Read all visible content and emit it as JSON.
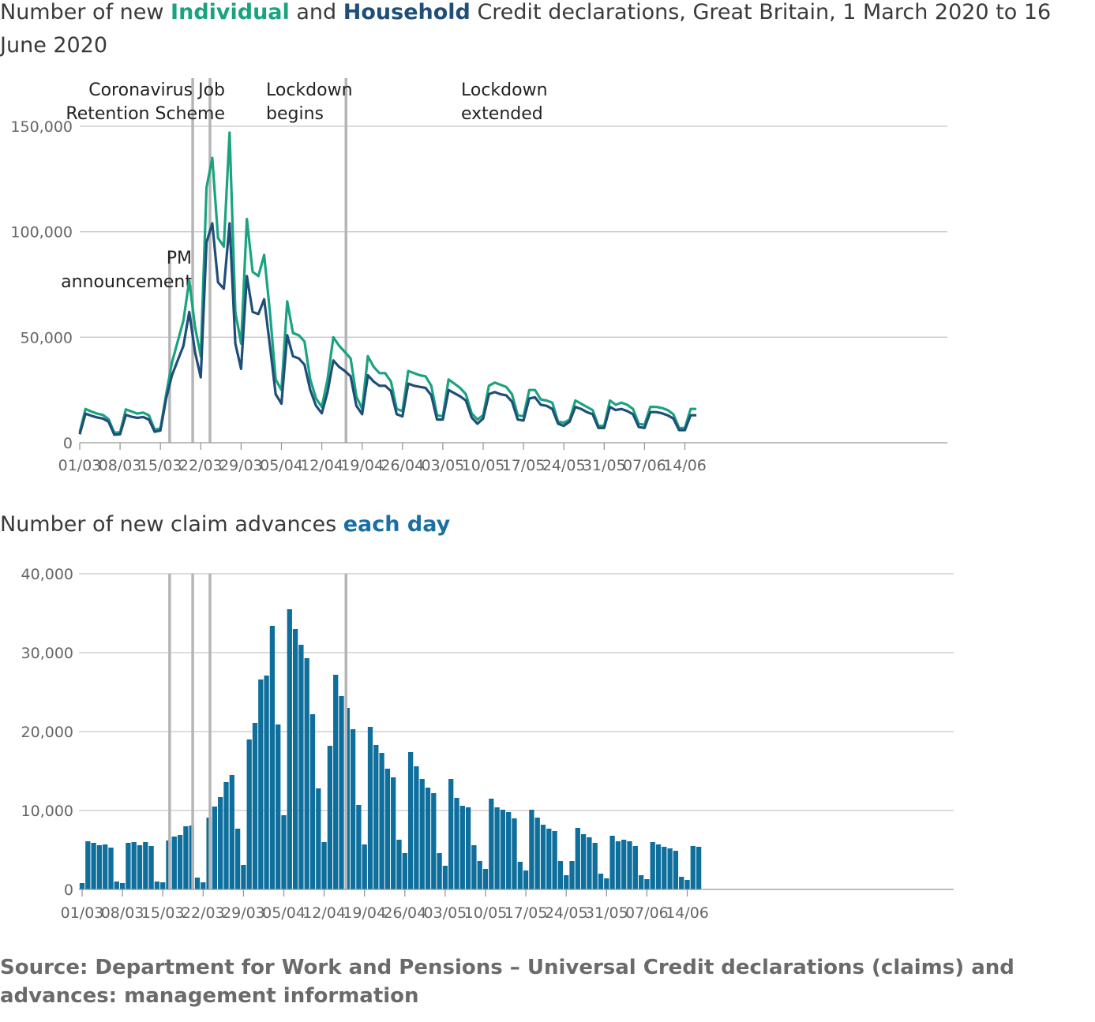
{
  "chart_data": [
    {
      "type": "line",
      "title": {
        "prefix": "Number of new ",
        "highlight1": "Individual",
        "mid": " and ",
        "highlight2": "Household",
        "suffix": " Credit declarations, Great Britain, 1 March 2020 to 16 June 2020"
      },
      "x_tick_labels": [
        "01/03",
        "08/03",
        "15/03",
        "22/03",
        "29/03",
        "05/04",
        "12/04",
        "19/04",
        "26/04",
        "03/05",
        "10/05",
        "17/05",
        "24/05",
        "31/05",
        "07/06",
        "14/06"
      ],
      "y_tick_labels": [
        "0",
        "50,000",
        "100,000",
        "150,000"
      ],
      "ylim": [
        0,
        150000
      ],
      "xlim_days": [
        0,
        107
      ],
      "grid": true,
      "series": [
        {
          "name": "Individual",
          "color": "#1aa37f",
          "values": [
            5000,
            16000,
            14800,
            13800,
            13200,
            11200,
            4800,
            4900,
            15800,
            14800,
            13800,
            14300,
            13000,
            6200,
            6800,
            23000,
            38000,
            48000,
            58000,
            77000,
            55000,
            41000,
            121000,
            135000,
            97000,
            93000,
            147000,
            62000,
            47000,
            106000,
            81000,
            79000,
            89000,
            62000,
            30000,
            25000,
            67000,
            52000,
            51000,
            48000,
            30000,
            21000,
            17000,
            30000,
            50000,
            46000,
            43000,
            40000,
            22000,
            16000,
            41000,
            36000,
            33000,
            33000,
            29000,
            16000,
            15000,
            34000,
            33000,
            32000,
            31500,
            27000,
            13000,
            12500,
            30000,
            28000,
            26000,
            23000,
            14000,
            11000,
            13000,
            27000,
            28500,
            27500,
            26500,
            23000,
            13000,
            12500,
            25000,
            25000,
            20500,
            20000,
            19000,
            10000,
            9500,
            11000,
            20000,
            18500,
            17000,
            15500,
            8000,
            8000,
            20000,
            18000,
            19000,
            18000,
            16000,
            9000,
            8500,
            17000,
            17000,
            16500,
            15500,
            13500,
            7000,
            7000,
            16000,
            16000
          ],
          "note": ""
        },
        {
          "name": "Household",
          "color": "#1f4e79",
          "values": [
            4000,
            13800,
            12800,
            12000,
            11500,
            10000,
            3800,
            4000,
            13200,
            12300,
            11800,
            12200,
            11000,
            5200,
            5800,
            21000,
            32000,
            39000,
            46000,
            62000,
            43000,
            31000,
            95000,
            104000,
            76000,
            73000,
            104000,
            47000,
            35000,
            79000,
            62000,
            61000,
            68000,
            46000,
            23000,
            18500,
            51000,
            41000,
            40000,
            37000,
            25000,
            17500,
            14000,
            24000,
            39000,
            36000,
            34000,
            31500,
            17500,
            13500,
            32000,
            29000,
            27000,
            27000,
            24500,
            13500,
            12500,
            28000,
            27000,
            26500,
            26000,
            22500,
            11000,
            11000,
            25000,
            23500,
            22000,
            20000,
            12000,
            9000,
            11500,
            23000,
            24000,
            23000,
            22500,
            19500,
            11000,
            10500,
            21000,
            21500,
            18000,
            17500,
            16000,
            9000,
            8000,
            10000,
            17000,
            16000,
            14500,
            13500,
            7000,
            7000,
            17000,
            15500,
            16000,
            15000,
            13500,
            7500,
            7000,
            14500,
            14500,
            14000,
            13000,
            11500,
            6000,
            6000,
            13000,
            13000
          ]
        }
      ],
      "events": [
        {
          "key": "pm",
          "line1": "PM",
          "line2": "announcement",
          "day": 15.6
        },
        {
          "key": "crjs",
          "line1": "Coronavirus Job",
          "line2": "Retention Scheme",
          "day": 19.6
        },
        {
          "key": "lock",
          "line1": "Lockdown",
          "line2": "begins",
          "day": 22.6
        },
        {
          "key": "ext",
          "line1": "Lockdown",
          "line2": "extended",
          "day": 46.2
        }
      ]
    },
    {
      "type": "bar",
      "title": {
        "prefix": "Number of new claim advances ",
        "highlight": "each day"
      },
      "x_tick_labels": [
        "01/03",
        "08/03",
        "15/03",
        "22/03",
        "29/03",
        "05/04",
        "12/04",
        "19/04",
        "26/04",
        "03/05",
        "10/05",
        "17/05",
        "24/05",
        "31/05",
        "07/06",
        "14/06"
      ],
      "y_tick_labels": [
        "0",
        "10,000",
        "20,000",
        "30,000",
        "40,000"
      ],
      "ylim": [
        0,
        40000
      ],
      "grid": true,
      "series": [
        {
          "name": "",
          "color": "#0e6e9c",
          "values": [
            800,
            6100,
            5900,
            5600,
            5700,
            5300,
            1000,
            800,
            5900,
            6000,
            5600,
            6000,
            5500,
            1000,
            900,
            6200,
            6700,
            6900,
            8000,
            8100,
            1500,
            900,
            9100,
            10500,
            11700,
            13600,
            14500,
            7700,
            3100,
            19000,
            21100,
            26600,
            27100,
            33400,
            20900,
            9400,
            35500,
            33000,
            31000,
            29300,
            22200,
            12800,
            6000,
            18200,
            27200,
            24500,
            23000,
            20300,
            10700,
            5700,
            20600,
            18300,
            17300,
            15300,
            14200,
            6300,
            4600,
            17400,
            15600,
            14000,
            12900,
            12200,
            4600,
            3000,
            14000,
            11600,
            10600,
            10400,
            5600,
            3600,
            2600,
            11500,
            10400,
            10100,
            9800,
            9000,
            3500,
            2400,
            10100,
            9100,
            8200,
            7700,
            7400,
            3600,
            1800,
            3600,
            7800,
            7000,
            6600,
            5900,
            2000,
            1400,
            6800,
            6100,
            6300,
            6100,
            5500,
            1800,
            1300,
            6000,
            5700,
            5400,
            5200,
            4900,
            1600,
            1200,
            5500,
            5400
          ]
        }
      ],
      "event_days": [
        15.6,
        19.6,
        22.6,
        46.2
      ]
    }
  ],
  "source": "Source: Department for Work and Pensions – Universal Credit declarations (claims) and advances: management information"
}
